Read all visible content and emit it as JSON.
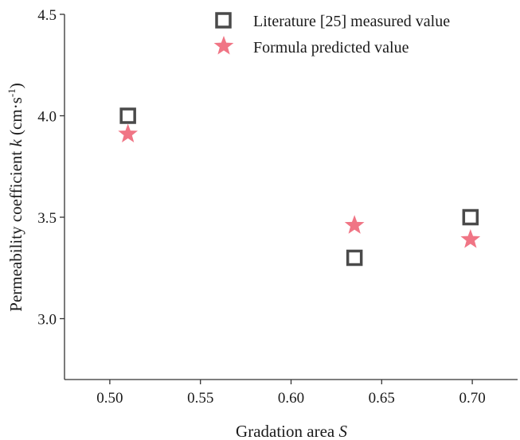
{
  "chart_data": {
    "type": "scatter",
    "xlabel": "Gradation area",
    "xlabel_symbol": "S",
    "ylabel": "Permeability coefficient",
    "ylabel_symbol": "k",
    "ylabel_unit_open": "(cm·s",
    "ylabel_unit_exp": "-1",
    "ylabel_unit_close": ")",
    "xlim": [
      0.475,
      0.725
    ],
    "ylim": [
      2.7,
      4.5
    ],
    "x_ticks": [
      0.5,
      0.55,
      0.6,
      0.65,
      0.7
    ],
    "x_tick_labels": [
      "0.50",
      "0.55",
      "0.60",
      "0.65",
      "0.70"
    ],
    "y_ticks": [
      3.0,
      3.5,
      4.0,
      4.5
    ],
    "y_tick_labels": [
      "3.0",
      "3.5",
      "4.0",
      "4.5"
    ],
    "legend_position": "top-right",
    "series": [
      {
        "name": "Literature [25] measured value",
        "marker": "open-square",
        "color": "#4a4a4a",
        "points": [
          {
            "x": 0.51,
            "y": 4.0
          },
          {
            "x": 0.635,
            "y": 3.3
          },
          {
            "x": 0.699,
            "y": 3.5
          }
        ]
      },
      {
        "name": "Formula predicted value",
        "marker": "star",
        "color": "#f07585",
        "points": [
          {
            "x": 0.51,
            "y": 3.91
          },
          {
            "x": 0.635,
            "y": 3.46
          },
          {
            "x": 0.699,
            "y": 3.39
          }
        ]
      }
    ]
  }
}
